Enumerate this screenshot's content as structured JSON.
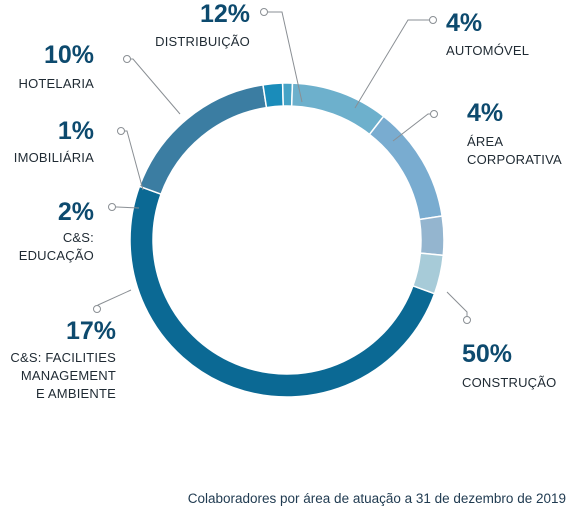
{
  "chart_data": {
    "type": "pie",
    "donut": true,
    "caption": "Colaboradores por área de atuação a 31 de dezembro de 2019",
    "slices": [
      {
        "pct_label": "50%",
        "value": 50,
        "label_lines": [
          "CONSTRUÇÃO"
        ],
        "color": "#0b6994"
      },
      {
        "pct_label": "17%",
        "value": 17,
        "label_lines": [
          "C&S: FACILITIES",
          "MANAGEMENT",
          "E AMBIENTE"
        ],
        "color": "#3b7da2"
      },
      {
        "pct_label": "2%",
        "value": 2,
        "label_lines": [
          "C&S:",
          "EDUCAÇÃO"
        ],
        "color": "#1a8cba"
      },
      {
        "pct_label": "1%",
        "value": 1,
        "label_lines": [
          "IMOBILIÁRIA"
        ],
        "color": "#46a3c6"
      },
      {
        "pct_label": "10%",
        "value": 10,
        "label_lines": [
          "HOTELARIA"
        ],
        "color": "#6db0cc"
      },
      {
        "pct_label": "12%",
        "value": 12,
        "label_lines": [
          "DISTRIBUIÇÃO"
        ],
        "color": "#79acd0"
      },
      {
        "pct_label": "4%",
        "value": 4,
        "label_lines": [
          "AUTOMÓVEL"
        ],
        "color": "#94b5cf"
      },
      {
        "pct_label": "4%",
        "value": 4,
        "label_lines": [
          "ÁREA",
          "CORPORATIVA"
        ],
        "color": "#a7cbd8"
      }
    ]
  }
}
